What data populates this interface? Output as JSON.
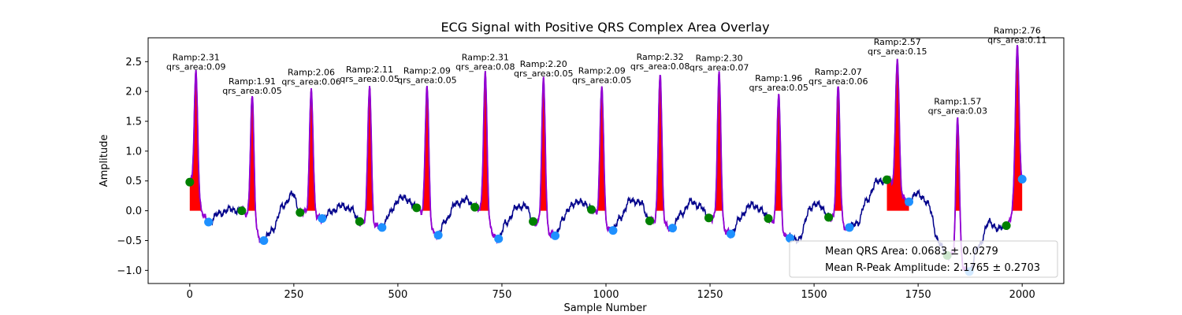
{
  "chart_data": {
    "type": "line",
    "title": "ECG Signal with Positive QRS Complex Area Overlay",
    "xlabel": "Sample Number",
    "ylabel": "Amplitude",
    "xlim": [
      -100,
      2100
    ],
    "ylim": [
      -1.22,
      2.9
    ],
    "xticks": [
      0,
      250,
      500,
      750,
      1000,
      1250,
      1500,
      1750,
      2000
    ],
    "yticks": [
      -1.0,
      -0.5,
      0.0,
      0.5,
      1.0,
      1.5,
      2.0,
      2.5
    ],
    "grid": false,
    "colors": {
      "signal": "#00008b",
      "qrs_segment": "#9400d3",
      "qrs_area": "#ff0000",
      "onset_marker": "#008000",
      "offset_marker": "#1e90ff"
    },
    "beats": [
      {
        "r_x": 15,
        "r_amp": 2.31,
        "qrs_area": 0.09,
        "onset": [
          0,
          0.48
        ],
        "offset": [
          45,
          -0.19
        ]
      },
      {
        "r_x": 150,
        "r_amp": 1.91,
        "qrs_area": 0.05,
        "onset": [
          125,
          0.0
        ],
        "offset": [
          178,
          -0.5
        ]
      },
      {
        "r_x": 292,
        "r_amp": 2.06,
        "qrs_area": 0.06,
        "onset": [
          265,
          -0.03
        ],
        "offset": [
          318,
          -0.13
        ]
      },
      {
        "r_x": 432,
        "r_amp": 2.11,
        "qrs_area": 0.05,
        "onset": [
          408,
          -0.18
        ],
        "offset": [
          462,
          -0.28
        ]
      },
      {
        "r_x": 570,
        "r_amp": 2.09,
        "qrs_area": 0.05,
        "onset": [
          545,
          0.05
        ],
        "offset": [
          597,
          -0.41
        ]
      },
      {
        "r_x": 710,
        "r_amp": 2.31,
        "qrs_area": 0.08,
        "onset": [
          685,
          0.06
        ],
        "offset": [
          742,
          -0.47
        ]
      },
      {
        "r_x": 850,
        "r_amp": 2.2,
        "qrs_area": 0.05,
        "onset": [
          825,
          -0.18
        ],
        "offset": [
          878,
          -0.42
        ]
      },
      {
        "r_x": 990,
        "r_amp": 2.09,
        "qrs_area": 0.05,
        "onset": [
          965,
          0.02
        ],
        "offset": [
          1017,
          -0.33
        ]
      },
      {
        "r_x": 1130,
        "r_amp": 2.32,
        "qrs_area": 0.08,
        "onset": [
          1105,
          -0.17
        ],
        "offset": [
          1160,
          -0.29
        ]
      },
      {
        "r_x": 1272,
        "r_amp": 2.3,
        "qrs_area": 0.07,
        "onset": [
          1247,
          -0.12
        ],
        "offset": [
          1300,
          -0.39
        ]
      },
      {
        "r_x": 1415,
        "r_amp": 1.96,
        "qrs_area": 0.05,
        "onset": [
          1390,
          -0.13
        ],
        "offset": [
          1442,
          -0.46
        ]
      },
      {
        "r_x": 1558,
        "r_amp": 2.07,
        "qrs_area": 0.06,
        "onset": [
          1535,
          -0.11
        ],
        "offset": [
          1585,
          -0.28
        ]
      },
      {
        "r_x": 1700,
        "r_amp": 2.57,
        "qrs_area": 0.15,
        "onset": [
          1675,
          0.52
        ],
        "offset": [
          1728,
          0.15
        ]
      },
      {
        "r_x": 1845,
        "r_amp": 1.57,
        "qrs_area": 0.03,
        "onset": [
          1820,
          -0.75
        ],
        "offset": [
          1873,
          -1.02
        ]
      },
      {
        "r_x": 1988,
        "r_amp": 2.76,
        "qrs_area": 0.11,
        "onset": [
          1962,
          -0.25
        ],
        "offset": [
          2000,
          0.53
        ]
      }
    ],
    "baseline_waypoints": [
      [
        0,
        0.48
      ],
      [
        20,
        0.05
      ],
      [
        45,
        -0.19
      ],
      [
        70,
        -0.05
      ],
      [
        95,
        0.02
      ],
      [
        125,
        0.0
      ],
      [
        178,
        -0.5
      ],
      [
        200,
        -0.3
      ],
      [
        225,
        0.1
      ],
      [
        248,
        0.28
      ],
      [
        265,
        -0.03
      ],
      [
        318,
        -0.13
      ],
      [
        340,
        -0.02
      ],
      [
        360,
        0.08
      ],
      [
        385,
        0.05
      ],
      [
        408,
        -0.18
      ],
      [
        462,
        -0.28
      ],
      [
        480,
        -0.05
      ],
      [
        505,
        0.22
      ],
      [
        525,
        0.18
      ],
      [
        545,
        0.05
      ],
      [
        597,
        -0.41
      ],
      [
        615,
        -0.15
      ],
      [
        640,
        0.12
      ],
      [
        665,
        0.18
      ],
      [
        685,
        0.06
      ],
      [
        742,
        -0.47
      ],
      [
        760,
        -0.2
      ],
      [
        785,
        0.05
      ],
      [
        805,
        0.1
      ],
      [
        825,
        -0.18
      ],
      [
        878,
        -0.42
      ],
      [
        895,
        -0.15
      ],
      [
        920,
        0.12
      ],
      [
        945,
        0.15
      ],
      [
        965,
        0.02
      ],
      [
        1017,
        -0.33
      ],
      [
        1035,
        -0.1
      ],
      [
        1060,
        0.18
      ],
      [
        1085,
        0.12
      ],
      [
        1105,
        -0.17
      ],
      [
        1160,
        -0.29
      ],
      [
        1180,
        -0.05
      ],
      [
        1205,
        0.15
      ],
      [
        1225,
        0.08
      ],
      [
        1247,
        -0.12
      ],
      [
        1300,
        -0.39
      ],
      [
        1320,
        -0.15
      ],
      [
        1345,
        0.1
      ],
      [
        1368,
        0.05
      ],
      [
        1390,
        -0.13
      ],
      [
        1442,
        -0.46
      ],
      [
        1465,
        -0.48
      ],
      [
        1490,
        0.05
      ],
      [
        1512,
        0.12
      ],
      [
        1535,
        -0.11
      ],
      [
        1585,
        -0.28
      ],
      [
        1605,
        -0.2
      ],
      [
        1625,
        0.15
      ],
      [
        1650,
        0.48
      ],
      [
        1675,
        0.52
      ],
      [
        1728,
        0.15
      ],
      [
        1750,
        0.3
      ],
      [
        1775,
        0.1
      ],
      [
        1800,
        -0.55
      ],
      [
        1820,
        -0.75
      ],
      [
        1873,
        -1.02
      ],
      [
        1895,
        -0.6
      ],
      [
        1920,
        -0.2
      ],
      [
        1945,
        -0.3
      ],
      [
        1962,
        -0.25
      ],
      [
        2000,
        0.53
      ]
    ],
    "legend": {
      "location": "lower right",
      "entries": [
        "Mean QRS Area: 0.0683 ± 0.0279",
        "Mean R-Peak Amplitude: 2.1765 ± 0.2703"
      ]
    }
  }
}
